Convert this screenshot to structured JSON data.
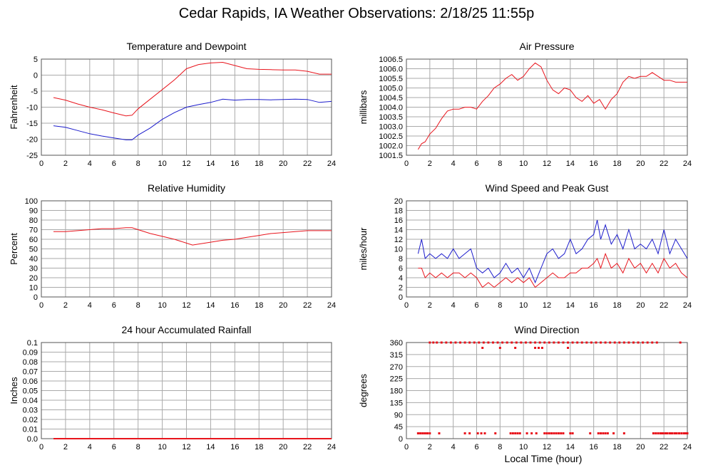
{
  "page_title": "Cedar Rapids, IA Weather Observations: 2/18/25 11:55p",
  "x_axis_title": "Local Time (hour)",
  "colors": {
    "red": "#e8141c",
    "blue": "#1c1ccc",
    "grid": "#aaaaaa",
    "frame": "#555555"
  },
  "chart_data": [
    {
      "id": "temperature",
      "type": "line",
      "title": "Temperature and Dewpoint",
      "xlabel": "",
      "ylabel": "Fahrenheit",
      "xlim": [
        0,
        24
      ],
      "ylim": [
        -25,
        5
      ],
      "x_ticks": [
        0,
        2,
        4,
        6,
        8,
        10,
        12,
        14,
        16,
        18,
        20,
        22,
        24
      ],
      "y_ticks": [
        -25,
        -20,
        -15,
        -10,
        -5,
        0,
        5
      ],
      "grid": true,
      "series": [
        {
          "color": "#e8141c",
          "x": [
            1.0,
            2.0,
            3.0,
            4.0,
            5.0,
            6.0,
            7.0,
            7.5,
            8.0,
            9.0,
            10.0,
            11.0,
            12.0,
            13.0,
            14.0,
            15.0,
            16.0,
            17.0,
            18.0,
            19.0,
            20.0,
            21.0,
            22.0,
            23.0,
            24.0
          ],
          "y": [
            -7,
            -7.8,
            -9,
            -10,
            -10.8,
            -11.8,
            -12.7,
            -12.5,
            -10.5,
            -7.5,
            -4.5,
            -1.5,
            2,
            3.3,
            3.8,
            4,
            3,
            2,
            1.8,
            1.7,
            1.6,
            1.6,
            1.2,
            0.3,
            0.3
          ]
        },
        {
          "color": "#1c1ccc",
          "x": [
            1.0,
            2.0,
            3.0,
            4.0,
            5.0,
            6.0,
            7.0,
            7.5,
            8.0,
            9.0,
            10.0,
            11.0,
            12.0,
            13.0,
            14.0,
            15.0,
            16.0,
            17.0,
            18.0,
            19.0,
            20.0,
            21.0,
            22.0,
            23.0,
            24.0
          ],
          "y": [
            -15.8,
            -16.3,
            -17.3,
            -18.3,
            -19,
            -19.6,
            -20.2,
            -20.2,
            -18.7,
            -16.5,
            -13.8,
            -11.7,
            -10,
            -9.2,
            -8.5,
            -7.5,
            -7.8,
            -7.6,
            -7.6,
            -7.7,
            -7.6,
            -7.5,
            -7.6,
            -8.5,
            -8.2
          ]
        }
      ]
    },
    {
      "id": "pressure",
      "type": "line",
      "title": "Air Pressure",
      "xlabel": "",
      "ylabel": "millibars",
      "xlim": [
        0,
        24
      ],
      "ylim": [
        1001.5,
        1006.5
      ],
      "x_ticks": [
        0,
        2,
        4,
        6,
        8,
        10,
        12,
        14,
        16,
        18,
        20,
        22,
        24
      ],
      "y_ticks": [
        "1001.5",
        "1002.0",
        "1002.5",
        "1003.0",
        "1003.5",
        "1004.0",
        "1004.5",
        "1005.0",
        "1005.5",
        "1006.0",
        "1006.5"
      ],
      "grid": true,
      "series": [
        {
          "color": "#e8141c",
          "x": [
            1.0,
            1.3,
            1.6,
            2.0,
            2.5,
            3.0,
            3.5,
            4.0,
            4.5,
            5.0,
            5.5,
            6.0,
            6.5,
            7.0,
            7.5,
            8.0,
            8.5,
            9.0,
            9.5,
            10.0,
            10.5,
            11.0,
            11.5,
            12.0,
            12.5,
            13.0,
            13.5,
            14.0,
            14.5,
            15.0,
            15.5,
            16.0,
            16.5,
            17.0,
            17.5,
            18.0,
            18.5,
            19.0,
            19.5,
            20.0,
            20.5,
            21.0,
            21.5,
            22.0,
            22.5,
            23.0,
            23.5,
            24.0
          ],
          "y": [
            1001.8,
            1002.1,
            1002.2,
            1002.6,
            1002.9,
            1003.4,
            1003.8,
            1003.9,
            1003.9,
            1004.0,
            1004.0,
            1003.9,
            1004.3,
            1004.6,
            1005.0,
            1005.2,
            1005.5,
            1005.7,
            1005.4,
            1005.6,
            1006.0,
            1006.3,
            1006.1,
            1005.4,
            1004.9,
            1004.7,
            1005.0,
            1004.9,
            1004.5,
            1004.3,
            1004.6,
            1004.2,
            1004.4,
            1003.9,
            1004.4,
            1004.7,
            1005.3,
            1005.6,
            1005.5,
            1005.6,
            1005.6,
            1005.8,
            1005.6,
            1005.4,
            1005.4,
            1005.3,
            1005.3,
            1005.3
          ]
        }
      ]
    },
    {
      "id": "humidity",
      "type": "line",
      "title": "Relative Humidity",
      "xlabel": "",
      "ylabel": "Percent",
      "xlim": [
        0,
        24
      ],
      "ylim": [
        0,
        100
      ],
      "x_ticks": [
        0,
        2,
        4,
        6,
        8,
        10,
        12,
        14,
        16,
        18,
        20,
        22,
        24
      ],
      "y_ticks": [
        0,
        10,
        20,
        30,
        40,
        50,
        60,
        70,
        80,
        90,
        100
      ],
      "grid": true,
      "series": [
        {
          "color": "#e8141c",
          "x": [
            1.0,
            2.0,
            3.0,
            4.0,
            5.0,
            6.0,
            7.0,
            7.5,
            8.0,
            9.0,
            10.0,
            11.0,
            12.0,
            12.5,
            13.0,
            14.0,
            15.0,
            16.0,
            17.0,
            18.0,
            19.0,
            20.0,
            21.0,
            22.0,
            23.0,
            24.0
          ],
          "y": [
            68,
            68,
            69,
            70,
            71,
            71,
            72,
            72,
            70,
            66,
            63,
            60,
            56,
            54,
            55,
            57,
            59,
            60,
            62,
            64,
            66,
            67,
            68,
            69,
            69,
            69
          ]
        }
      ]
    },
    {
      "id": "wind-speed",
      "type": "line",
      "title": "Wind Speed and Peak Gust",
      "xlabel": "",
      "ylabel": "miles/hour",
      "xlim": [
        0,
        24
      ],
      "ylim": [
        0,
        20
      ],
      "x_ticks": [
        0,
        2,
        4,
        6,
        8,
        10,
        12,
        14,
        16,
        18,
        20,
        22,
        24
      ],
      "y_ticks": [
        0,
        2,
        4,
        6,
        8,
        10,
        12,
        14,
        16,
        18,
        20
      ],
      "grid": true,
      "series": [
        {
          "color": "#1c1ccc",
          "x": [
            1.0,
            1.3,
            1.6,
            2.0,
            2.5,
            3.0,
            3.5,
            4.0,
            4.5,
            5.0,
            5.5,
            6.0,
            6.5,
            7.0,
            7.5,
            8.0,
            8.5,
            9.0,
            9.5,
            10.0,
            10.5,
            11.0,
            11.5,
            12.0,
            12.5,
            13.0,
            13.5,
            14.0,
            14.5,
            15.0,
            15.5,
            16.0,
            16.3,
            16.6,
            17.0,
            17.5,
            18.0,
            18.5,
            19.0,
            19.5,
            20.0,
            20.5,
            21.0,
            21.5,
            22.0,
            22.5,
            23.0,
            23.5,
            24.0
          ],
          "y": [
            9,
            12,
            8,
            9,
            8,
            9,
            8,
            10,
            8,
            9,
            10,
            6,
            5,
            6,
            4,
            5,
            7,
            5,
            6,
            4,
            6,
            3,
            6,
            9,
            10,
            8,
            9,
            12,
            9,
            10,
            12,
            13,
            16,
            12,
            15,
            11,
            13,
            10,
            14,
            10,
            11,
            10,
            12,
            9,
            14,
            9,
            12,
            10,
            8
          ]
        },
        {
          "color": "#e8141c",
          "x": [
            1.0,
            1.3,
            1.6,
            2.0,
            2.5,
            3.0,
            3.5,
            4.0,
            4.5,
            5.0,
            5.5,
            6.0,
            6.5,
            7.0,
            7.5,
            8.0,
            8.5,
            9.0,
            9.5,
            10.0,
            10.5,
            11.0,
            11.5,
            12.0,
            12.5,
            13.0,
            13.5,
            14.0,
            14.5,
            15.0,
            15.5,
            16.0,
            16.3,
            16.6,
            17.0,
            17.5,
            18.0,
            18.5,
            19.0,
            19.5,
            20.0,
            20.5,
            21.0,
            21.5,
            22.0,
            22.5,
            23.0,
            23.5,
            24.0
          ],
          "y": [
            6,
            6,
            4,
            5,
            4,
            5,
            4,
            5,
            5,
            4,
            5,
            4,
            2,
            3,
            2,
            3,
            4,
            3,
            4,
            3,
            4,
            2,
            3,
            4,
            5,
            4,
            4,
            5,
            5,
            6,
            6,
            7,
            8,
            6,
            9,
            6,
            7,
            5,
            8,
            6,
            7,
            5,
            7,
            5,
            8,
            6,
            7,
            5,
            4
          ]
        }
      ]
    },
    {
      "id": "rainfall",
      "type": "line",
      "title": "24 hour Accumulated Rainfall",
      "xlabel": "",
      "ylabel": "Inches",
      "xlim": [
        0,
        24
      ],
      "ylim": [
        0,
        0.1
      ],
      "x_ticks": [
        0,
        2,
        4,
        6,
        8,
        10,
        12,
        14,
        16,
        18,
        20,
        22,
        24
      ],
      "y_ticks": [
        "0.0",
        "0.01",
        "0.02",
        "0.03",
        "0.04",
        "0.05",
        "0.06",
        "0.07",
        "0.08",
        "0.09",
        "0.1"
      ],
      "grid": true,
      "series": [
        {
          "color": "#e8141c",
          "x": [
            1.0,
            24.0
          ],
          "y": [
            0,
            0
          ]
        }
      ]
    },
    {
      "id": "wind-direction",
      "type": "scatter",
      "title": "Wind Direction",
      "xlabel": "",
      "ylabel": "degrees",
      "xlim": [
        0,
        24
      ],
      "ylim": [
        0,
        360
      ],
      "x_ticks": [
        0,
        2,
        4,
        6,
        8,
        10,
        12,
        14,
        16,
        18,
        20,
        22,
        24
      ],
      "y_ticks": [
        0,
        45,
        90,
        135,
        180,
        225,
        270,
        315,
        360
      ],
      "grid": true,
      "series": [
        {
          "color": "#e8141c",
          "x": [
            1.0,
            1.2,
            1.4,
            1.6,
            1.8,
            2.0,
            2.3,
            2.6,
            3.0,
            3.4,
            3.8,
            4.2,
            4.6,
            5.0,
            5.4,
            5.8,
            6.2,
            6.6,
            7.0,
            7.4,
            7.8,
            8.2,
            8.6,
            9.0,
            9.4,
            9.8,
            10.2,
            10.6,
            11.0,
            11.4,
            11.8,
            12.2,
            12.6,
            13.0,
            13.4,
            13.8,
            14.2,
            14.6,
            15.0,
            15.4,
            15.8,
            16.2,
            16.6,
            17.0,
            17.4,
            17.8,
            18.2,
            18.6,
            19.0,
            19.4,
            19.8,
            20.2,
            20.6,
            21.0,
            21.4,
            21.8,
            22.2,
            22.6,
            23.0,
            23.4,
            23.8,
            24.0,
            1.0,
            1.2,
            1.4,
            1.6,
            1.8,
            2.0,
            2.8,
            5.0,
            5.4,
            6.1,
            6.4,
            6.7,
            7.6,
            8.9,
            9.1,
            9.3,
            9.5,
            9.7,
            10.3,
            10.7,
            11.1,
            11.8,
            12.0,
            12.2,
            12.4,
            12.6,
            12.8,
            13.0,
            13.2,
            13.4,
            14.0,
            14.2,
            15.7,
            16.4,
            16.6,
            16.8,
            17.0,
            17.2,
            17.7,
            18.6,
            21.1,
            21.3,
            21.5,
            21.7,
            21.9,
            22.1,
            22.3,
            22.5,
            22.7,
            22.9,
            23.1,
            23.3,
            23.5,
            23.7,
            23.9,
            6.5,
            8.0,
            9.3,
            11.0,
            11.3,
            11.6,
            13.8
          ],
          "y": [
            20,
            20,
            20,
            20,
            20,
            360,
            360,
            360,
            360,
            360,
            360,
            360,
            360,
            360,
            360,
            360,
            360,
            360,
            360,
            360,
            360,
            360,
            360,
            360,
            360,
            360,
            360,
            360,
            360,
            360,
            360,
            360,
            360,
            360,
            360,
            360,
            360,
            360,
            360,
            360,
            360,
            360,
            360,
            360,
            360,
            360,
            360,
            360,
            360,
            360,
            360,
            360,
            360,
            360,
            360,
            20,
            20,
            20,
            20,
            360,
            20,
            20,
            20,
            20,
            20,
            20,
            20,
            20,
            20,
            20,
            20,
            20,
            20,
            20,
            20,
            20,
            20,
            20,
            20,
            20,
            20,
            20,
            20,
            20,
            20,
            20,
            20,
            20,
            20,
            20,
            20,
            20,
            20,
            20,
            20,
            20,
            20,
            20,
            20,
            20,
            20,
            20,
            20,
            20,
            20,
            20,
            20,
            20,
            20,
            20,
            20,
            20,
            20,
            20,
            20,
            20,
            20,
            340,
            340,
            340,
            340,
            340,
            340,
            340
          ]
        }
      ]
    }
  ]
}
